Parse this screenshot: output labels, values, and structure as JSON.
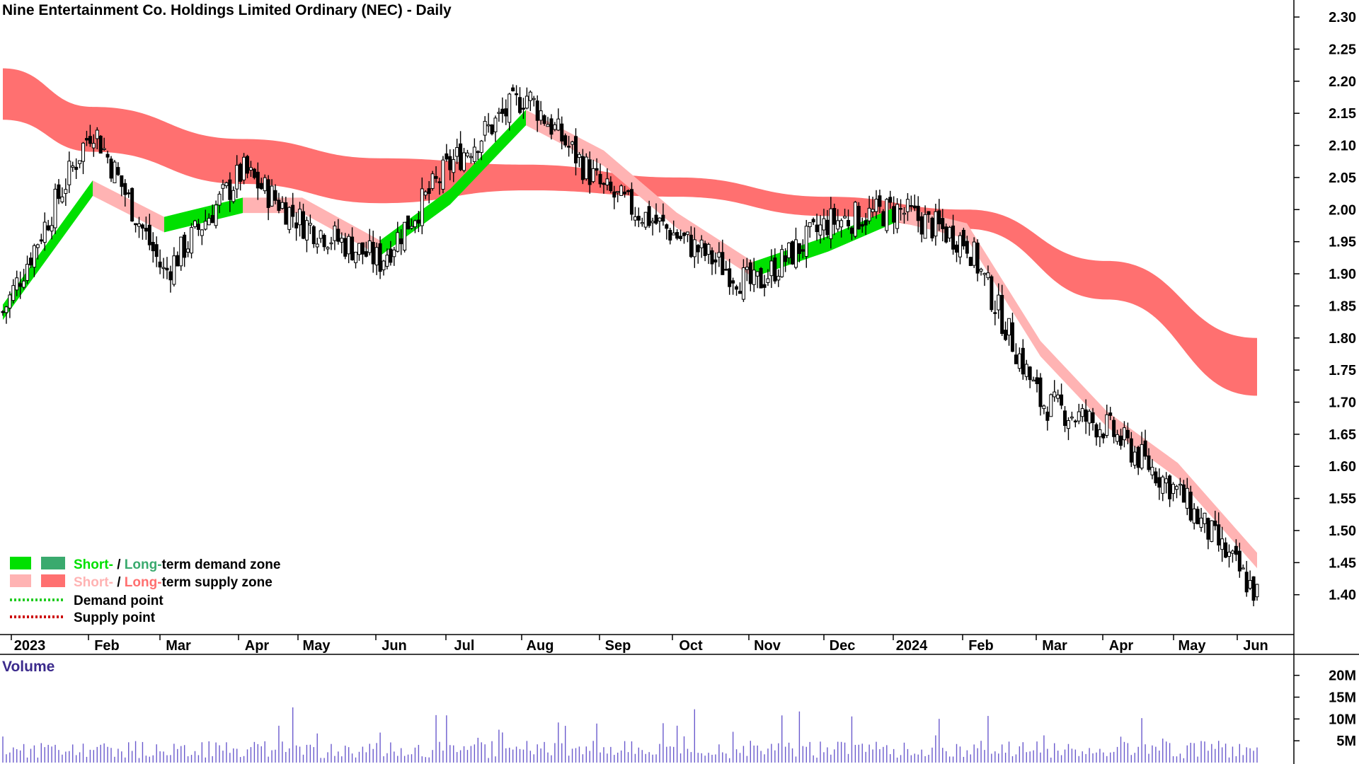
{
  "chart_data": {
    "type": "candlestick",
    "title": "Nine Entertainment Co. Holdings Limited Ordinary (NEC) - Daily",
    "ylim": [
      1.36,
      2.31
    ],
    "y_ticks": [
      "2.30",
      "2.25",
      "2.20",
      "2.15",
      "2.10",
      "2.05",
      "2.00",
      "1.95",
      "1.90",
      "1.85",
      "1.80",
      "1.75",
      "1.70",
      "1.65",
      "1.60",
      "1.55",
      "1.50",
      "1.45",
      "1.40"
    ],
    "x_ticks": [
      "2023",
      "Feb",
      "Mar",
      "Apr",
      "May",
      "Jun",
      "Jul",
      "Aug",
      "Sep",
      "Oct",
      "Nov",
      "Dec",
      "2024",
      "Feb",
      "Mar",
      "Apr",
      "May",
      "Jun"
    ],
    "price_path": [
      {
        "month": "Jan 2023",
        "close": 1.84
      },
      {
        "month": "Feb 2023",
        "close": 2.13
      },
      {
        "month": "Mar 2023",
        "close": 1.9
      },
      {
        "month": "Apr 2023",
        "close": 2.06
      },
      {
        "month": "May 2023",
        "close": 1.98
      },
      {
        "month": "Jun 2023",
        "close": 1.92
      },
      {
        "month": "Jul 2023",
        "close": 2.07
      },
      {
        "month": "Aug 2023",
        "close": 2.18
      },
      {
        "month": "Sep 2023",
        "close": 2.03
      },
      {
        "month": "Oct 2023",
        "close": 1.96
      },
      {
        "month": "Nov 2023",
        "close": 1.88
      },
      {
        "month": "Dec 2023",
        "close": 1.98
      },
      {
        "month": "Jan 2024",
        "close": 2.0
      },
      {
        "month": "Feb 2024",
        "close": 1.95
      },
      {
        "month": "Mar 2024",
        "close": 1.7
      },
      {
        "month": "Apr 2024",
        "close": 1.66
      },
      {
        "month": "May 2024",
        "close": 1.56
      },
      {
        "month": "Jun 2024",
        "close": 1.4
      }
    ],
    "long_term_supply_band": [
      {
        "month": "Jan 2023",
        "upper": 2.22,
        "lower": 2.14
      },
      {
        "month": "Feb 2023",
        "upper": 2.16,
        "lower": 2.09
      },
      {
        "month": "Apr 2023",
        "upper": 2.11,
        "lower": 2.04
      },
      {
        "month": "Jun 2023",
        "upper": 2.08,
        "lower": 2.01
      },
      {
        "month": "Aug 2023",
        "upper": 2.07,
        "lower": 2.03
      },
      {
        "month": "Oct 2023",
        "upper": 2.05,
        "lower": 2.02
      },
      {
        "month": "Dec 2023",
        "upper": 2.02,
        "lower": 1.99
      },
      {
        "month": "Feb 2024",
        "upper": 2.0,
        "lower": 1.97
      },
      {
        "month": "Apr 2024",
        "upper": 1.92,
        "lower": 1.86
      },
      {
        "month": "Jun 2024",
        "upper": 1.8,
        "lower": 1.71
      }
    ],
    "volume": {
      "label": "Volume",
      "y_ticks": [
        "20M",
        "15M",
        "10M",
        "5M"
      ],
      "ylim": [
        0,
        24
      ]
    },
    "legend": [
      {
        "parts": [
          "Short-",
          " / ",
          "Long-",
          "term demand zone"
        ],
        "swatches": [
          "#00e000",
          "#3aaa6e"
        ]
      },
      {
        "parts": [
          "Short-",
          " / ",
          "Long-",
          "term supply zone"
        ],
        "swatches": [
          "#ffb3b3",
          "#ff7070"
        ]
      },
      {
        "parts": [
          "Demand point"
        ],
        "line": "#22cc22"
      },
      {
        "parts": [
          "Supply point"
        ],
        "line": "#cc0000"
      }
    ],
    "colors": {
      "short_demand": "#00e000",
      "long_demand": "#3aaa6e",
      "short_supply": "#ffb3b3",
      "long_supply": "#ff7070",
      "overlap": "#ff7a1a",
      "volume": "#6a5acd"
    }
  }
}
